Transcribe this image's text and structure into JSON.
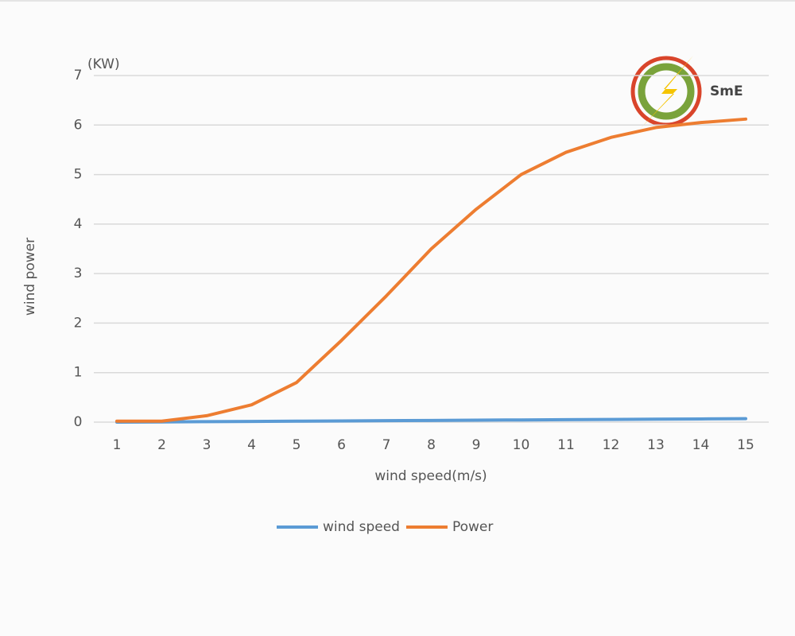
{
  "chart_data": {
    "type": "line",
    "y_unit": "(KW)",
    "y_label": "wind power",
    "x_label": "wind speed(m/s)",
    "categories": [
      "1",
      "2",
      "3",
      "4",
      "5",
      "6",
      "7",
      "8",
      "9",
      "10",
      "11",
      "12",
      "13",
      "14",
      "15"
    ],
    "series": [
      {
        "name": "wind speed",
        "color": "#5b9bd5",
        "values": [
          0,
          0.005,
          0.01,
          0.015,
          0.02,
          0.025,
          0.03,
          0.035,
          0.04,
          0.045,
          0.05,
          0.055,
          0.06,
          0.065,
          0.07
        ]
      },
      {
        "name": "Power",
        "color": "#ed7d31",
        "values": [
          0.02,
          0.02,
          0.13,
          0.35,
          0.8,
          1.65,
          2.55,
          3.5,
          4.3,
          5.0,
          5.45,
          5.75,
          5.95,
          6.05,
          6.12
        ]
      }
    ],
    "ylim": [
      0,
      7
    ],
    "yticks": [
      0,
      1,
      2,
      3,
      4,
      5,
      6,
      7
    ],
    "grid": true,
    "legend": "bottom"
  },
  "logo": {
    "text": "SmE"
  }
}
